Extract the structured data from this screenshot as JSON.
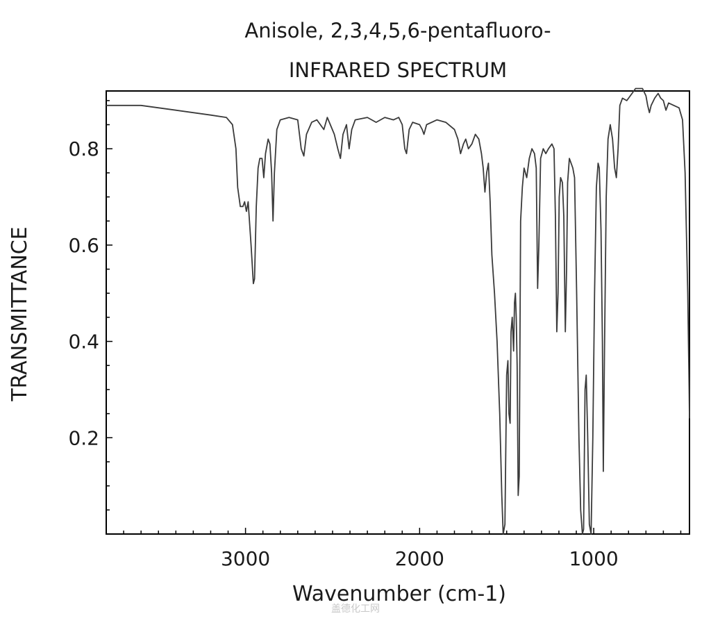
{
  "chart_data": {
    "type": "line",
    "title": "Anisole, 2,3,4,5,6-pentafluoro-",
    "subtitle": "INFRARED SPECTRUM",
    "xlabel": "Wavenumber (cm-1)",
    "ylabel": "TRANSMITTANCE",
    "xlim": [
      3800,
      450
    ],
    "ylim": [
      0.0,
      0.92
    ],
    "x_reversed": true,
    "grid": false,
    "xticks": [
      3000,
      2000,
      1000
    ],
    "xtick_labels": [
      "3000",
      "2000",
      "1000"
    ],
    "yticks": [
      0.2,
      0.4,
      0.6,
      0.8
    ],
    "ytick_labels": [
      "0.2",
      "0.4",
      "0.6",
      "0.8"
    ],
    "series": [
      {
        "color": "#3a3a3a",
        "points": [
          [
            3800,
            0.89
          ],
          [
            3600,
            0.89
          ],
          [
            3400,
            0.88
          ],
          [
            3200,
            0.87
          ],
          [
            3110,
            0.865
          ],
          [
            3075,
            0.85
          ],
          [
            3055,
            0.8
          ],
          [
            3045,
            0.72
          ],
          [
            3030,
            0.68
          ],
          [
            3015,
            0.68
          ],
          [
            3005,
            0.69
          ],
          [
            2995,
            0.67
          ],
          [
            2985,
            0.69
          ],
          [
            2968,
            0.6
          ],
          [
            2955,
            0.52
          ],
          [
            2948,
            0.53
          ],
          [
            2938,
            0.68
          ],
          [
            2928,
            0.76
          ],
          [
            2918,
            0.78
          ],
          [
            2905,
            0.78
          ],
          [
            2895,
            0.74
          ],
          [
            2885,
            0.79
          ],
          [
            2870,
            0.82
          ],
          [
            2860,
            0.81
          ],
          [
            2850,
            0.75
          ],
          [
            2842,
            0.65
          ],
          [
            2834,
            0.75
          ],
          [
            2820,
            0.84
          ],
          [
            2800,
            0.86
          ],
          [
            2750,
            0.865
          ],
          [
            2700,
            0.86
          ],
          [
            2680,
            0.8
          ],
          [
            2665,
            0.785
          ],
          [
            2650,
            0.83
          ],
          [
            2620,
            0.855
          ],
          [
            2590,
            0.86
          ],
          [
            2550,
            0.84
          ],
          [
            2530,
            0.865
          ],
          [
            2490,
            0.83
          ],
          [
            2470,
            0.8
          ],
          [
            2455,
            0.78
          ],
          [
            2440,
            0.83
          ],
          [
            2420,
            0.85
          ],
          [
            2405,
            0.8
          ],
          [
            2390,
            0.84
          ],
          [
            2370,
            0.86
          ],
          [
            2300,
            0.865
          ],
          [
            2250,
            0.855
          ],
          [
            2200,
            0.865
          ],
          [
            2150,
            0.86
          ],
          [
            2120,
            0.865
          ],
          [
            2100,
            0.85
          ],
          [
            2085,
            0.8
          ],
          [
            2075,
            0.79
          ],
          [
            2060,
            0.84
          ],
          [
            2040,
            0.855
          ],
          [
            2000,
            0.85
          ],
          [
            1985,
            0.84
          ],
          [
            1975,
            0.83
          ],
          [
            1960,
            0.85
          ],
          [
            1900,
            0.86
          ],
          [
            1850,
            0.855
          ],
          [
            1800,
            0.84
          ],
          [
            1780,
            0.82
          ],
          [
            1765,
            0.79
          ],
          [
            1748,
            0.81
          ],
          [
            1735,
            0.82
          ],
          [
            1720,
            0.8
          ],
          [
            1700,
            0.81
          ],
          [
            1680,
            0.83
          ],
          [
            1660,
            0.82
          ],
          [
            1645,
            0.79
          ],
          [
            1635,
            0.76
          ],
          [
            1625,
            0.71
          ],
          [
            1615,
            0.75
          ],
          [
            1605,
            0.77
          ],
          [
            1595,
            0.69
          ],
          [
            1585,
            0.58
          ],
          [
            1570,
            0.5
          ],
          [
            1555,
            0.4
          ],
          [
            1540,
            0.25
          ],
          [
            1528,
            0.08
          ],
          [
            1520,
            0.0
          ],
          [
            1510,
            0.02
          ],
          [
            1500,
            0.33
          ],
          [
            1493,
            0.36
          ],
          [
            1487,
            0.25
          ],
          [
            1480,
            0.23
          ],
          [
            1475,
            0.42
          ],
          [
            1468,
            0.45
          ],
          [
            1460,
            0.38
          ],
          [
            1455,
            0.48
          ],
          [
            1450,
            0.5
          ],
          [
            1445,
            0.45
          ],
          [
            1440,
            0.35
          ],
          [
            1434,
            0.08
          ],
          [
            1428,
            0.12
          ],
          [
            1420,
            0.65
          ],
          [
            1410,
            0.72
          ],
          [
            1400,
            0.76
          ],
          [
            1385,
            0.74
          ],
          [
            1370,
            0.78
          ],
          [
            1355,
            0.8
          ],
          [
            1340,
            0.79
          ],
          [
            1330,
            0.76
          ],
          [
            1322,
            0.51
          ],
          [
            1315,
            0.6
          ],
          [
            1305,
            0.78
          ],
          [
            1290,
            0.8
          ],
          [
            1275,
            0.79
          ],
          [
            1260,
            0.8
          ],
          [
            1240,
            0.81
          ],
          [
            1228,
            0.8
          ],
          [
            1220,
            0.66
          ],
          [
            1212,
            0.42
          ],
          [
            1205,
            0.5
          ],
          [
            1198,
            0.7
          ],
          [
            1190,
            0.74
          ],
          [
            1180,
            0.73
          ],
          [
            1172,
            0.66
          ],
          [
            1163,
            0.42
          ],
          [
            1156,
            0.55
          ],
          [
            1150,
            0.73
          ],
          [
            1140,
            0.78
          ],
          [
            1130,
            0.77
          ],
          [
            1120,
            0.76
          ],
          [
            1110,
            0.74
          ],
          [
            1098,
            0.5
          ],
          [
            1085,
            0.2
          ],
          [
            1075,
            0.05
          ],
          [
            1065,
            0.0
          ],
          [
            1058,
            0.01
          ],
          [
            1050,
            0.3
          ],
          [
            1043,
            0.33
          ],
          [
            1035,
            0.21
          ],
          [
            1025,
            0.02
          ],
          [
            1015,
            0.0
          ],
          [
            1005,
            0.2
          ],
          [
            995,
            0.5
          ],
          [
            985,
            0.72
          ],
          [
            975,
            0.77
          ],
          [
            968,
            0.76
          ],
          [
            958,
            0.63
          ],
          [
            950,
            0.4
          ],
          [
            945,
            0.13
          ],
          [
            938,
            0.38
          ],
          [
            928,
            0.7
          ],
          [
            918,
            0.82
          ],
          [
            905,
            0.85
          ],
          [
            892,
            0.82
          ],
          [
            880,
            0.76
          ],
          [
            870,
            0.74
          ],
          [
            860,
            0.8
          ],
          [
            850,
            0.89
          ],
          [
            835,
            0.905
          ],
          [
            810,
            0.9
          ],
          [
            780,
            0.915
          ],
          [
            760,
            0.925
          ],
          [
            720,
            0.925
          ],
          [
            700,
            0.91
          ],
          [
            690,
            0.89
          ],
          [
            680,
            0.875
          ],
          [
            670,
            0.89
          ],
          [
            650,
            0.905
          ],
          [
            630,
            0.915
          ],
          [
            615,
            0.905
          ],
          [
            600,
            0.9
          ],
          [
            585,
            0.88
          ],
          [
            570,
            0.895
          ],
          [
            540,
            0.89
          ],
          [
            510,
            0.885
          ],
          [
            490,
            0.86
          ],
          [
            475,
            0.75
          ],
          [
            460,
            0.5
          ],
          [
            452,
            0.3
          ],
          [
            450,
            0.24
          ]
        ]
      }
    ],
    "watermark": "盖德化工网"
  }
}
